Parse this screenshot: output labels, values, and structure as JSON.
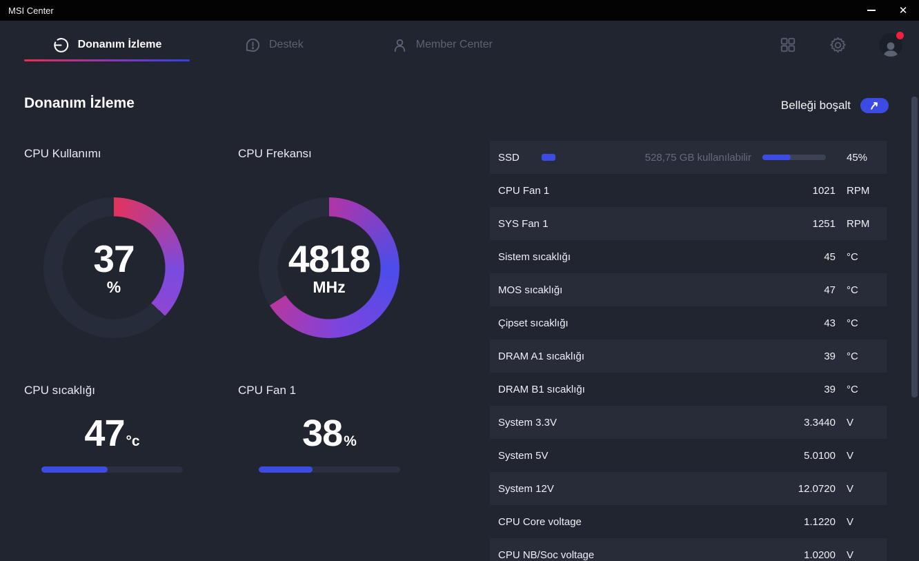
{
  "window": {
    "title": "MSI Center",
    "minimize_label": "minimize",
    "close_glyph": "✕"
  },
  "nav": {
    "tabs": [
      {
        "label": "Donanım İzleme",
        "icon": "gauge-icon",
        "active": true
      },
      {
        "label": "Destek",
        "icon": "support-icon",
        "active": false
      },
      {
        "label": "Member Center",
        "icon": "member-icon",
        "active": false
      }
    ],
    "right_icons": [
      "apps-grid-icon",
      "settings-gear-icon",
      "user-avatar"
    ],
    "avatar_has_notification": true
  },
  "header": {
    "title": "Donanım İzleme",
    "memory_button_label": "Belleği boşalt"
  },
  "gauges": [
    {
      "label": "CPU Kullanımı",
      "value": "37",
      "unit": "%",
      "percent": 37,
      "stops": [
        {
          "color": "#e2335c",
          "at": 0
        },
        {
          "color": "#7a4be0",
          "at": 0.7
        },
        {
          "color": "#8f46d2",
          "at": 1
        }
      ]
    },
    {
      "label": "CPU Frekansı",
      "value": "4818",
      "unit": "MHz",
      "percent": 66,
      "stops": [
        {
          "color": "#b135a6",
          "at": 0
        },
        {
          "color": "#4b4dea",
          "at": 0.38
        },
        {
          "color": "#7d44de",
          "at": 0.72
        },
        {
          "color": "#b637a0",
          "at": 1
        }
      ]
    }
  ],
  "stats": [
    {
      "label": "CPU sıcaklığı",
      "value": "47",
      "unit": "°c",
      "percent": 47
    },
    {
      "label": "CPU Fan 1",
      "value": "38",
      "unit": "%",
      "percent": 38
    }
  ],
  "sensor_table": {
    "rows": [
      {
        "type": "ssd",
        "label": "SSD",
        "available": "528,75 GB kullanılabilir",
        "percent": 45,
        "percent_label": "45%"
      },
      {
        "label": "CPU Fan 1",
        "value": "1021",
        "unit": "RPM"
      },
      {
        "label": "SYS Fan 1",
        "value": "1251",
        "unit": "RPM"
      },
      {
        "label": "Sistem sıcaklığı",
        "value": "45",
        "unit": "°C"
      },
      {
        "label": "MOS sıcaklığı",
        "value": "47",
        "unit": "°C"
      },
      {
        "label": "Çipset sıcaklığı",
        "value": "43",
        "unit": "°C"
      },
      {
        "label": "DRAM A1 sıcaklığı",
        "value": "39",
        "unit": "°C"
      },
      {
        "label": "DRAM B1 sıcaklığı",
        "value": "39",
        "unit": "°C"
      },
      {
        "label": "System 3.3V",
        "value": "3.3440",
        "unit": "V"
      },
      {
        "label": "System 5V",
        "value": "5.0100",
        "unit": "V"
      },
      {
        "label": "System 12V",
        "value": "12.0720",
        "unit": "V"
      },
      {
        "label": "CPU Core voltage",
        "value": "1.1220",
        "unit": "V"
      },
      {
        "label": "CPU NB/Soc voltage",
        "value": "1.0200",
        "unit": "V"
      }
    ]
  },
  "colors": {
    "accent_blue": "#3c4ce3",
    "underline_red": "#ea2e4e",
    "underline_blue": "#3140e8",
    "gauge_track": "#272c3a",
    "row_alt_bg": "#282c38",
    "muted_text": "#626b7c",
    "notification_red": "#f2203e",
    "titlebar_bg": "#030304",
    "page_bg": "#21252f"
  }
}
